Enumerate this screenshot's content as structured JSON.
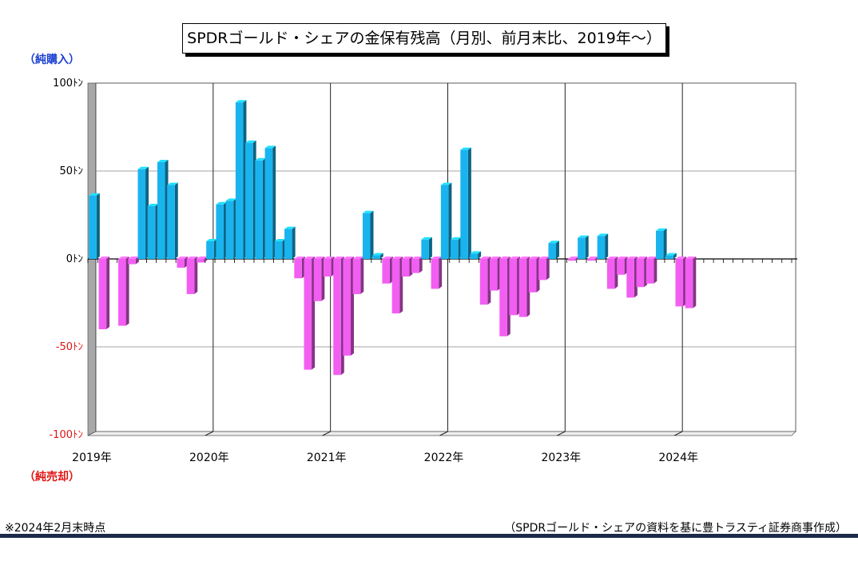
{
  "title": "SPDRゴールド・シェアの金保有残高（月別、前月末比、2019年～）",
  "labels": {
    "net_buy": "（純購入）",
    "net_sell": "（純売却）"
  },
  "notes": {
    "as_of": "※2024年2月末時点",
    "source": "（SPDRゴールド・シェアの資料を基に豊トラスティ証券商事作成）"
  },
  "colors": {
    "positive": "#19b4ee",
    "negative": "#f25ef2",
    "footer": "#1b2a4a"
  },
  "chart_data": {
    "type": "bar",
    "y_ticks": [
      "100ﾄﾝ",
      "50ﾄﾝ",
      "0ﾄﾝ",
      "-50ﾄﾝ",
      "-100ﾄﾝ"
    ],
    "y_tick_values": [
      100,
      50,
      0,
      -50,
      -100
    ],
    "ylim": [
      -100,
      100
    ],
    "year_labels": [
      "2019年",
      "2020年",
      "2021年",
      "2022年",
      "2023年",
      "2024年"
    ],
    "grid": true,
    "months": 72,
    "values": [
      36,
      -40,
      0,
      -38,
      -3,
      51,
      30,
      55,
      42,
      -5,
      -20,
      -2,
      10,
      31,
      33,
      89,
      66,
      56,
      63,
      10,
      17,
      -11,
      -63,
      -24,
      -10,
      -66,
      -55,
      -20,
      26,
      2,
      -14,
      -31,
      -10,
      -8,
      11,
      -17,
      42,
      11,
      62,
      3,
      -26,
      -18,
      -44,
      -32,
      -33,
      -19,
      -12,
      9,
      0,
      -1,
      12,
      -1,
      13,
      -17,
      -9,
      -22,
      -16,
      -14,
      16,
      2,
      -27,
      -28,
      0,
      0,
      0,
      0,
      0,
      0,
      0,
      0,
      0,
      0
    ]
  }
}
